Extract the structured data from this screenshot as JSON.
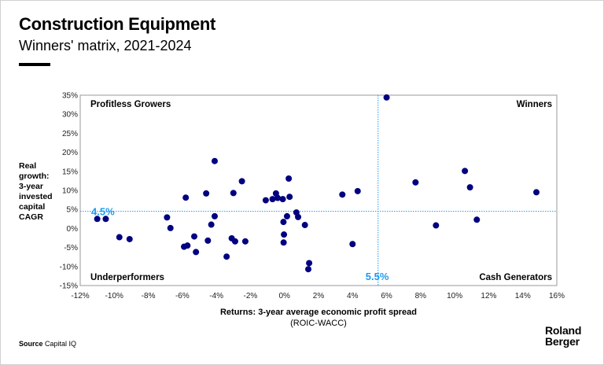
{
  "header": {
    "title": "Construction Equipment",
    "subtitle": "Winners' matrix, 2021-2024"
  },
  "footer": {
    "source_label": "Source",
    "source_value": "Capital IQ",
    "logo_line1": "Roland",
    "logo_line2": "Berger"
  },
  "chart_data": {
    "type": "scatter",
    "title": "Construction Equipment",
    "subtitle": "Winners' matrix, 2021-2024",
    "xlabel": "Returns: 3-year average economic profit spread",
    "xlabel_sub": "(ROIC-WACC)",
    "ylabel_lines": [
      "Real",
      "growth:",
      "3-year",
      "invested",
      "capital",
      "CAGR"
    ],
    "xlim": [
      -12,
      16
    ],
    "ylim": [
      -15,
      35
    ],
    "xticks": [
      -12,
      -10,
      -8,
      -6,
      -4,
      -2,
      0,
      2,
      4,
      6,
      8,
      10,
      12,
      14,
      16
    ],
    "yticks": [
      -15,
      -10,
      -5,
      0,
      5,
      10,
      15,
      20,
      25,
      30,
      35
    ],
    "xtick_labels": [
      "-12%",
      "-10%",
      "-8%",
      "-6%",
      "-4%",
      "-2%",
      "0%",
      "2%",
      "4%",
      "6%",
      "8%",
      "10%",
      "12%",
      "14%",
      "16%"
    ],
    "ytick_labels": [
      "-15%",
      "-10%",
      "-5%",
      "0%",
      "5%",
      "10%",
      "15%",
      "20%",
      "25%",
      "30%",
      "35%"
    ],
    "grid": false,
    "thresholds": {
      "x": 5.5,
      "x_label": "5.5%",
      "y": 4.5,
      "y_label": "4.5%"
    },
    "quadrants": {
      "top_left": "Profitless Growers",
      "top_right": "Winners",
      "bottom_left": "Underperformers",
      "bottom_right": "Cash Generators"
    },
    "colors": {
      "points": "#000080",
      "threshold": "#1e9bf0"
    },
    "points": [
      [
        -11.0,
        2.5
      ],
      [
        -10.5,
        2.5
      ],
      [
        -9.7,
        -2.3
      ],
      [
        -9.1,
        -2.8
      ],
      [
        -6.9,
        2.9
      ],
      [
        -6.7,
        0.1
      ],
      [
        -5.8,
        8.1
      ],
      [
        -5.9,
        -4.8
      ],
      [
        -5.7,
        -4.5
      ],
      [
        -5.3,
        -2.1
      ],
      [
        -5.2,
        -6.2
      ],
      [
        -4.6,
        9.2
      ],
      [
        -4.5,
        -3.2
      ],
      [
        -4.3,
        1.0
      ],
      [
        -4.1,
        3.2
      ],
      [
        -4.1,
        17.7
      ],
      [
        -3.4,
        -7.4
      ],
      [
        -3.1,
        -2.6
      ],
      [
        -2.9,
        -3.4
      ],
      [
        -3.0,
        9.3
      ],
      [
        -2.5,
        12.4
      ],
      [
        -2.3,
        -3.4
      ],
      [
        -1.1,
        7.4
      ],
      [
        -0.7,
        7.7
      ],
      [
        -0.5,
        9.2
      ],
      [
        -0.4,
        8.0
      ],
      [
        -0.1,
        7.7
      ],
      [
        0.25,
        13.1
      ],
      [
        0.3,
        8.3
      ],
      [
        -0.06,
        1.7
      ],
      [
        0.15,
        3.2
      ],
      [
        0.7,
        4.2
      ],
      [
        0.8,
        3.0
      ],
      [
        1.2,
        0.9
      ],
      [
        -0.03,
        -1.6
      ],
      [
        -0.05,
        -3.7
      ],
      [
        1.45,
        -9.1
      ],
      [
        1.4,
        -10.7
      ],
      [
        3.4,
        8.9
      ],
      [
        4.3,
        9.8
      ],
      [
        4.0,
        -4.1
      ],
      [
        6.0,
        34.4
      ],
      [
        7.7,
        12.1
      ],
      [
        8.9,
        0.8
      ],
      [
        10.6,
        15.1
      ],
      [
        10.9,
        10.8
      ],
      [
        11.3,
        2.3
      ],
      [
        14.8,
        9.5
      ]
    ]
  }
}
